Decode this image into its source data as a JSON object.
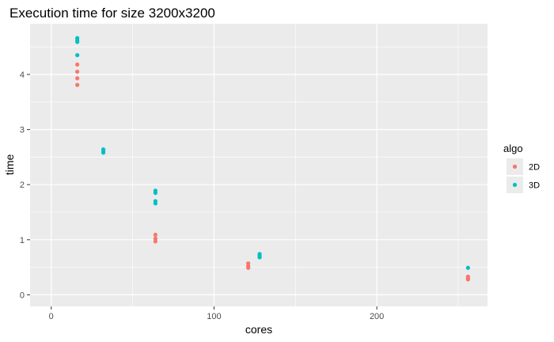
{
  "chart_data": {
    "type": "scatter",
    "title": "Execution time for size 3200x3200",
    "xlabel": "cores",
    "ylabel": "time",
    "xlim": [
      -13,
      268
    ],
    "ylim": [
      -0.21,
      4.92
    ],
    "x_ticks": [
      0,
      100,
      200
    ],
    "y_ticks": [
      0,
      1,
      2,
      3,
      4
    ],
    "grid": true,
    "legend": {
      "title": "algo",
      "position": "right"
    },
    "series": [
      {
        "name": "2D",
        "color": "#F8766D",
        "points": [
          {
            "x": 16,
            "y": 4.18
          },
          {
            "x": 16,
            "y": 4.05
          },
          {
            "x": 16,
            "y": 3.93
          },
          {
            "x": 16,
            "y": 3.81
          },
          {
            "x": 64,
            "y": 1.09
          },
          {
            "x": 64,
            "y": 1.02
          },
          {
            "x": 64,
            "y": 0.97
          },
          {
            "x": 121,
            "y": 0.57
          },
          {
            "x": 121,
            "y": 0.52
          },
          {
            "x": 121,
            "y": 0.49
          },
          {
            "x": 256,
            "y": 0.33
          },
          {
            "x": 256,
            "y": 0.3
          },
          {
            "x": 256,
            "y": 0.28
          }
        ]
      },
      {
        "name": "3D",
        "color": "#00BFC4",
        "points": [
          {
            "x": 16,
            "y": 4.66
          },
          {
            "x": 16,
            "y": 4.62
          },
          {
            "x": 16,
            "y": 4.59
          },
          {
            "x": 16,
            "y": 4.35
          },
          {
            "x": 32,
            "y": 2.64
          },
          {
            "x": 32,
            "y": 2.61
          },
          {
            "x": 32,
            "y": 2.58
          },
          {
            "x": 64,
            "y": 1.89
          },
          {
            "x": 64,
            "y": 1.85
          },
          {
            "x": 64,
            "y": 1.7
          },
          {
            "x": 64,
            "y": 1.66
          },
          {
            "x": 128,
            "y": 0.74
          },
          {
            "x": 128,
            "y": 0.71
          },
          {
            "x": 128,
            "y": 0.68
          },
          {
            "x": 256,
            "y": 0.49
          }
        ]
      }
    ]
  }
}
